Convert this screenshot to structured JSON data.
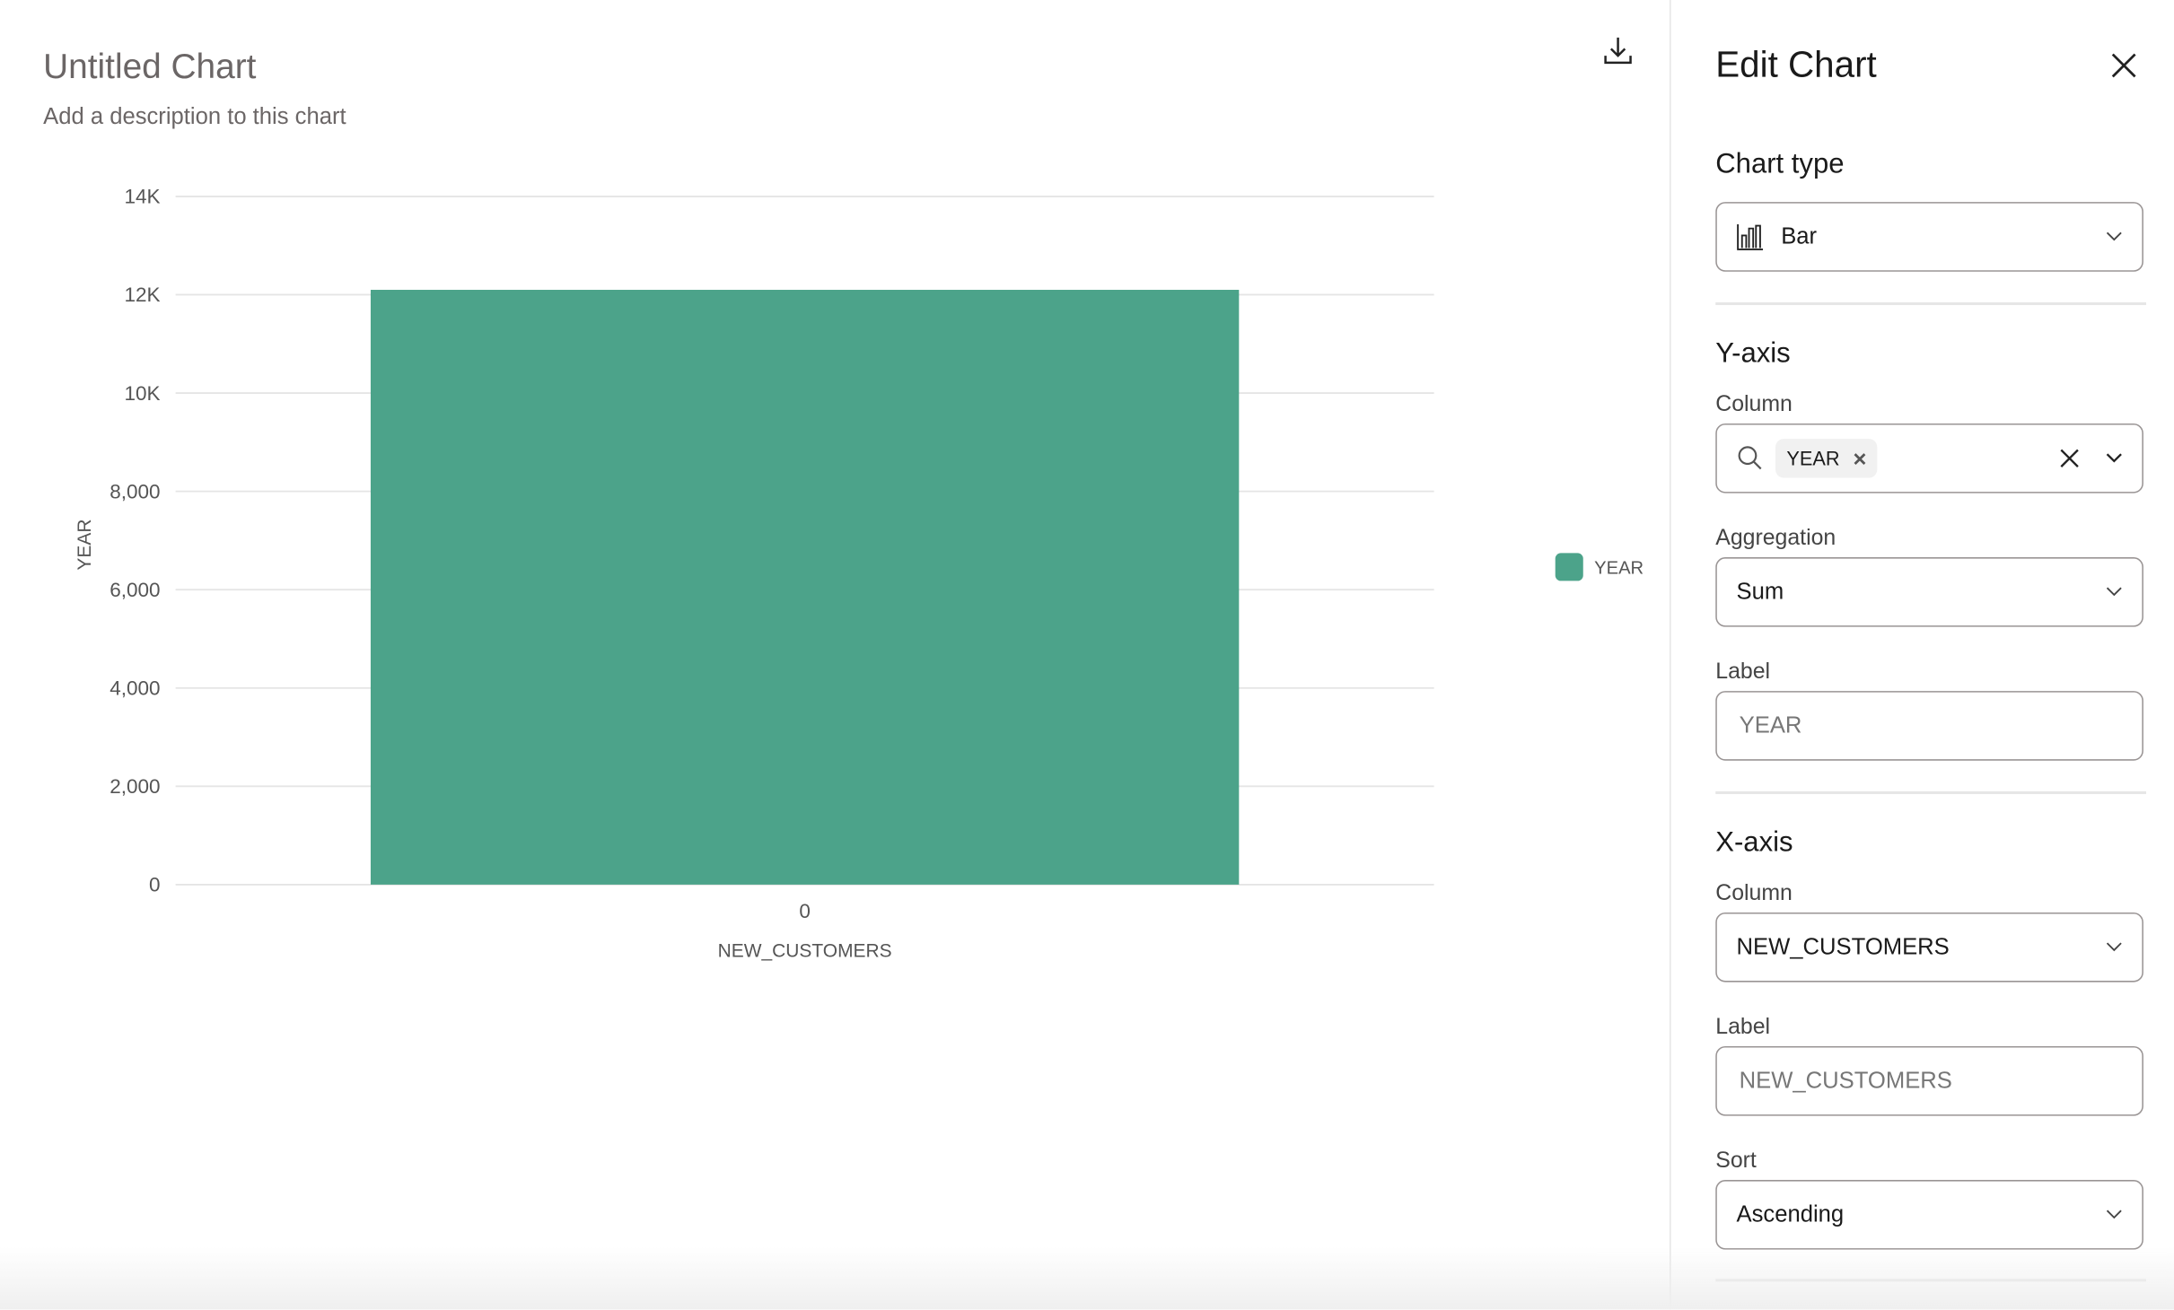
{
  "chart": {
    "title": "Untitled Chart",
    "description": "Add a description to this chart",
    "download_icon": "download-icon"
  },
  "chart_data": {
    "type": "bar",
    "categories": [
      "0"
    ],
    "series": [
      {
        "name": "YEAR",
        "values": [
          12100
        ],
        "color": "#4ca38a"
      }
    ],
    "xlabel": "NEW_CUSTOMERS",
    "ylabel": "YEAR",
    "ylim": [
      0,
      14000
    ],
    "yticks": [
      0,
      2000,
      4000,
      6000,
      8000,
      10000,
      12000,
      14000
    ],
    "ytick_labels": [
      "0",
      "2,000",
      "4,000",
      "6,000",
      "8,000",
      "10K",
      "12K",
      "14K"
    ],
    "grid": true,
    "legend": "right"
  },
  "panel": {
    "title": "Edit Chart",
    "chart_type_heading": "Chart type",
    "chart_type_value": "Bar",
    "y_axis": {
      "heading": "Y-axis",
      "column_label": "Column",
      "column_chip": "YEAR",
      "aggregation_label": "Aggregation",
      "aggregation_value": "Sum",
      "label_label": "Label",
      "label_placeholder": "YEAR"
    },
    "x_axis": {
      "heading": "X-axis",
      "column_label": "Column",
      "column_value": "NEW_CUSTOMERS",
      "label_label": "Label",
      "label_placeholder": "NEW_CUSTOMERS",
      "sort_label": "Sort",
      "sort_value": "Ascending"
    }
  }
}
